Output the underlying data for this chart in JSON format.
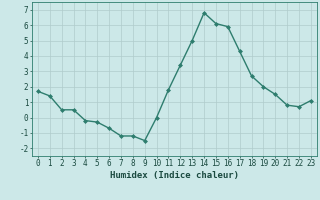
{
  "x": [
    0,
    1,
    2,
    3,
    4,
    5,
    6,
    7,
    8,
    9,
    10,
    11,
    12,
    13,
    14,
    15,
    16,
    17,
    18,
    19,
    20,
    21,
    22,
    23
  ],
  "y": [
    1.7,
    1.4,
    0.5,
    0.5,
    -0.2,
    -0.3,
    -0.7,
    -1.2,
    -1.2,
    -1.5,
    0.0,
    1.8,
    3.4,
    5.0,
    6.8,
    6.1,
    5.9,
    4.3,
    2.7,
    2.0,
    1.5,
    0.8,
    0.7,
    1.1
  ],
  "line_color": "#2e7d6e",
  "marker": "D",
  "marker_size": 2.0,
  "bg_color": "#cce8e8",
  "grid_color_major": "#b0cccc",
  "grid_color_minor": "#c8e0e0",
  "xlabel": "Humidex (Indice chaleur)",
  "xlim": [
    -0.5,
    23.5
  ],
  "ylim": [
    -2.5,
    7.5
  ],
  "yticks": [
    -2,
    -1,
    0,
    1,
    2,
    3,
    4,
    5,
    6,
    7
  ],
  "xticks": [
    0,
    1,
    2,
    3,
    4,
    5,
    6,
    7,
    8,
    9,
    10,
    11,
    12,
    13,
    14,
    15,
    16,
    17,
    18,
    19,
    20,
    21,
    22,
    23
  ],
  "tick_label_fontsize": 5.5,
  "xlabel_fontsize": 6.5,
  "line_width": 1.0
}
